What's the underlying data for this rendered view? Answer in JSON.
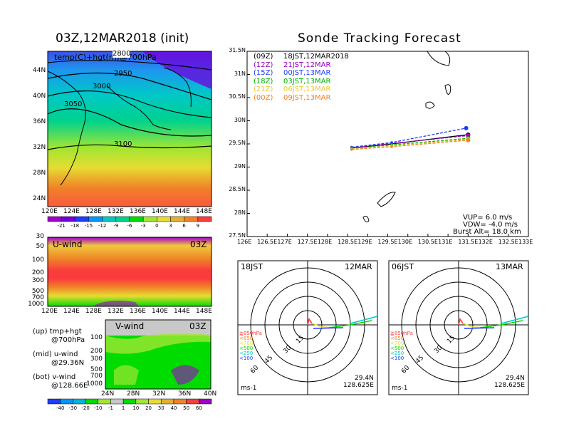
{
  "left_title": "03Z,12MAR2018 (init)",
  "right_title": "Sonde Tracking Forecast",
  "map_panel": {
    "label": "temp(C)+hgt(m)@700hPa",
    "contour_labels": [
      "2800",
      "2950",
      "3000",
      "3050",
      "3100"
    ],
    "lon_ticks": [
      "120E",
      "124E",
      "128E",
      "132E",
      "136E",
      "140E",
      "144E",
      "148E"
    ],
    "lat_ticks": [
      "44N",
      "40N",
      "36N",
      "32N",
      "28N",
      "24N"
    ]
  },
  "temp_colorbar": {
    "labels": [
      "-21",
      "-18",
      "-15",
      "-12",
      "-9",
      "-6",
      "-3",
      "0",
      "3",
      "6",
      "9"
    ],
    "colors": [
      "#a000c8",
      "#6e00dc",
      "#1e3cff",
      "#0096ff",
      "#00c8c8",
      "#00d28c",
      "#00dc00",
      "#a0e632",
      "#e6dc32",
      "#e6af2d",
      "#f08228",
      "#fa3c3c"
    ]
  },
  "uwind_panel": {
    "title": "U-wind",
    "time": "03Z",
    "p_ticks": [
      "30",
      "50",
      "100",
      "200",
      "300",
      "500",
      "700",
      "1000"
    ],
    "lon_ticks": [
      "120E",
      "124E",
      "128E",
      "132E",
      "136E",
      "140E",
      "144E",
      "148E"
    ]
  },
  "vwind_panel": {
    "title": "V-wind",
    "time": "03Z",
    "p_ticks": [
      "100",
      "200",
      "300",
      "500",
      "700",
      "1000"
    ],
    "lat_ticks": [
      "24N",
      "28N",
      "32N",
      "36N",
      "40N"
    ]
  },
  "wind_colorbar": {
    "labels": [
      "-40",
      "-30",
      "-20",
      "-10",
      "-1",
      "1",
      "10",
      "20",
      "30",
      "40",
      "50",
      "60"
    ],
    "colors": [
      "#1e3cff",
      "#0096ff",
      "#00b4dc",
      "#00dc00",
      "#a0e632",
      "#c8c8c8",
      "#00dc00",
      "#a0e632",
      "#e6dc32",
      "#e6af2d",
      "#f08228",
      "#fa3c3c",
      "#a000c8"
    ]
  },
  "notes": [
    {
      "line1": "(up) tmp+hgt",
      "line2": "@700hPa"
    },
    {
      "line1": "(mid) u-wind",
      "line2": "@29.36N"
    },
    {
      "line1": "(bot) v-wind",
      "line2": "@128.66E"
    }
  ],
  "track_legend": [
    {
      "code": "(09Z)",
      "label": "18JST,12MAR2018",
      "color": "#000000"
    },
    {
      "code": "(12Z)",
      "label": "21JST,12MAR",
      "color": "#a000c8"
    },
    {
      "code": "(15Z)",
      "label": "00JST,13MAR",
      "color": "#1e3cff"
    },
    {
      "code": "(18Z)",
      "label": "03JST,13MAR",
      "color": "#00b400"
    },
    {
      "code": "(21Z)",
      "label": "06JST,13MAR",
      "color": "#f0c83c"
    },
    {
      "code": "(00Z)",
      "label": "09JST,13MAR",
      "color": "#f08228"
    }
  ],
  "track_params": {
    "vup": "VUP=  6.0 m/s",
    "vdw": "VDW= -4.0 m/s",
    "burst": "Burst Alt= 18.0 km"
  },
  "polar_panels": [
    {
      "time": "18JST",
      "date": "12MAR",
      "lat": "29.4N",
      "lon": "128.625E",
      "unit": "ms-1",
      "rings": [
        "15",
        "30",
        "45",
        "60"
      ]
    },
    {
      "time": "06JST",
      "date": "13MAR",
      "lat": "29.4N",
      "lon": "128.625E",
      "unit": "ms-1",
      "rings": [
        "15",
        "30",
        "45",
        "60"
      ]
    }
  ],
  "polar_legend": [
    {
      "label": "≧850hPa",
      "color": "#fa3c3c"
    },
    {
      "label": "<850",
      "color": "#f08228"
    },
    {
      "label": "<700",
      "color": "#e6dc32"
    },
    {
      "label": "<500",
      "color": "#00dc00"
    },
    {
      "label": "<250",
      "color": "#00c8c8"
    },
    {
      "label": "<100",
      "color": "#1e3cff"
    }
  ],
  "chart_data": {
    "type": "line",
    "title": "Sonde Tracking Forecast",
    "xlim": [
      126,
      133
    ],
    "ylim": [
      27.5,
      31.5
    ],
    "x_ticks": [
      "126E",
      "126.5E",
      "127E",
      "127.5E",
      "128E",
      "128.5E",
      "129E",
      "129.5E",
      "130E",
      "130.5E",
      "131E",
      "131.5E",
      "132E",
      "132.5E",
      "133E"
    ],
    "y_ticks": [
      "31.5N",
      "31N",
      "30.5N",
      "30N",
      "29.5N",
      "29N",
      "28.5N",
      "28N",
      "27.5N"
    ],
    "x_tick_values": [
      126,
      126.5,
      127,
      127.5,
      128,
      128.5,
      129,
      129.5,
      130,
      130.5,
      131,
      131.5,
      132,
      132.5,
      133
    ],
    "y_tick_values": [
      31.5,
      31,
      30.5,
      30,
      29.5,
      29,
      28.5,
      28,
      27.5
    ],
    "series": [
      {
        "name": "(09Z) 18JST,12MAR2018",
        "color": "#000000",
        "x": [
          128.6,
          129.6,
          131.5
        ],
        "y": [
          29.41,
          29.5,
          29.7
        ]
      },
      {
        "name": "(12Z) 21JST,12MAR",
        "color": "#a000c8",
        "x": [
          128.6,
          129.6,
          131.5
        ],
        "y": [
          29.42,
          29.51,
          29.68
        ]
      },
      {
        "name": "(15Z) 00JST,13MAR",
        "color": "#1e3cff",
        "x": [
          128.6,
          129.6,
          131.45
        ],
        "y": [
          29.43,
          29.53,
          29.84
        ]
      },
      {
        "name": "(18Z) 03JST,13MAR",
        "color": "#00b400",
        "x": [
          128.6,
          129.6,
          131.5
        ],
        "y": [
          29.4,
          29.48,
          29.62
        ]
      },
      {
        "name": "(21Z) 06JST,13MAR",
        "color": "#f0c83c",
        "x": [
          128.6,
          129.6,
          131.5
        ],
        "y": [
          29.39,
          29.46,
          29.6
        ]
      },
      {
        "name": "(00Z) 09JST,13MAR",
        "color": "#f08228",
        "x": [
          128.6,
          129.6,
          131.5
        ],
        "y": [
          29.38,
          29.44,
          29.58
        ]
      }
    ]
  }
}
